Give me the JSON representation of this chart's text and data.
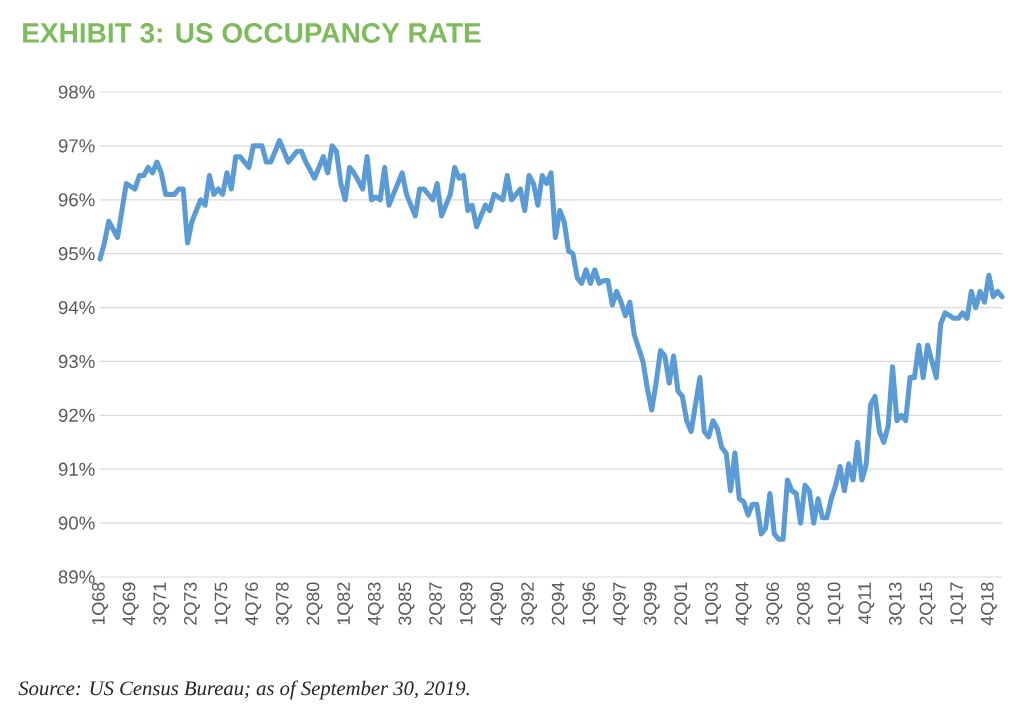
{
  "chart_data": {
    "type": "line",
    "title": "EXHIBIT 3: US OCCUPANCY RATE",
    "annotations": [
      "Source: US Census Bureau; as of September 30, 2019."
    ],
    "ylim": [
      89,
      98
    ],
    "grid": "y",
    "yticks": [
      {
        "value": 89,
        "label": "89%"
      },
      {
        "value": 90,
        "label": "90%"
      },
      {
        "value": 91,
        "label": "91%"
      },
      {
        "value": 92,
        "label": "92%"
      },
      {
        "value": 93,
        "label": "93%"
      },
      {
        "value": 94,
        "label": "94%"
      },
      {
        "value": 95,
        "label": "95%"
      },
      {
        "value": 96,
        "label": "96%"
      },
      {
        "value": 97,
        "label": "97%"
      },
      {
        "value": 98,
        "label": "98%"
      }
    ],
    "categories": [
      "1Q68",
      null,
      null,
      null,
      null,
      null,
      null,
      "4Q69",
      null,
      null,
      null,
      null,
      null,
      null,
      "3Q71",
      null,
      null,
      null,
      null,
      null,
      null,
      "2Q73",
      null,
      null,
      null,
      null,
      null,
      null,
      "1Q75",
      null,
      null,
      null,
      null,
      null,
      null,
      "4Q76",
      null,
      null,
      null,
      null,
      null,
      null,
      "3Q78",
      null,
      null,
      null,
      null,
      null,
      null,
      "2Q80",
      null,
      null,
      null,
      null,
      null,
      null,
      "1Q82",
      null,
      null,
      null,
      null,
      null,
      null,
      "4Q83",
      null,
      null,
      null,
      null,
      null,
      null,
      "3Q85",
      null,
      null,
      null,
      null,
      null,
      null,
      "2Q87",
      null,
      null,
      null,
      null,
      null,
      null,
      "1Q89",
      null,
      null,
      null,
      null,
      null,
      null,
      "4Q90",
      null,
      null,
      null,
      null,
      null,
      null,
      "3Q92",
      null,
      null,
      null,
      null,
      null,
      null,
      "2Q94",
      null,
      null,
      null,
      null,
      null,
      null,
      "1Q96",
      null,
      null,
      null,
      null,
      null,
      null,
      "4Q97",
      null,
      null,
      null,
      null,
      null,
      null,
      "3Q99",
      null,
      null,
      null,
      null,
      null,
      null,
      "2Q01",
      null,
      null,
      null,
      null,
      null,
      null,
      "1Q03",
      null,
      null,
      null,
      null,
      null,
      null,
      "4Q04",
      null,
      null,
      null,
      null,
      null,
      null,
      "3Q06",
      null,
      null,
      null,
      null,
      null,
      null,
      "2Q08",
      null,
      null,
      null,
      null,
      null,
      null,
      "1Q10",
      null,
      null,
      null,
      null,
      null,
      null,
      "4Q11",
      null,
      null,
      null,
      null,
      null,
      null,
      "3Q13",
      null,
      null,
      null,
      null,
      null,
      null,
      "2Q15",
      null,
      null,
      null,
      null,
      null,
      null,
      "1Q17",
      null,
      null,
      null,
      null,
      null,
      null,
      "4Q18",
      null,
      null,
      null
    ],
    "series": [
      {
        "color": "#5b9bd5",
        "values": [
          94.9,
          95.2,
          95.6,
          95.45,
          95.3,
          95.8,
          96.3,
          96.25,
          96.2,
          96.45,
          96.45,
          96.6,
          96.5,
          96.7,
          96.5,
          96.1,
          96.1,
          96.1,
          96.2,
          96.2,
          95.2,
          95.6,
          95.8,
          96.0,
          95.9,
          96.45,
          96.1,
          96.2,
          96.1,
          96.5,
          96.2,
          96.8,
          96.8,
          96.7,
          96.6,
          97.0,
          97.0,
          97.0,
          96.7,
          96.7,
          96.9,
          97.1,
          96.9,
          96.7,
          96.8,
          96.9,
          96.9,
          96.7,
          96.55,
          96.4,
          96.6,
          96.8,
          96.5,
          97.0,
          96.9,
          96.3,
          96.0,
          96.6,
          96.5,
          96.35,
          96.2,
          96.8,
          96.0,
          96.05,
          96.0,
          96.6,
          95.9,
          96.1,
          96.3,
          96.5,
          96.1,
          95.9,
          95.7,
          96.2,
          96.2,
          96.1,
          96.0,
          96.3,
          95.7,
          95.9,
          96.1,
          96.6,
          96.4,
          96.45,
          95.8,
          95.9,
          95.5,
          95.7,
          95.9,
          95.8,
          96.1,
          96.05,
          96.0,
          96.45,
          96.0,
          96.1,
          96.2,
          95.8,
          96.45,
          96.3,
          95.9,
          96.45,
          96.3,
          96.5,
          95.3,
          95.8,
          95.6,
          95.05,
          95.0,
          94.55,
          94.45,
          94.7,
          94.45,
          94.7,
          94.45,
          94.5,
          94.5,
          94.05,
          94.3,
          94.1,
          93.85,
          94.1,
          93.5,
          93.25,
          93.0,
          92.5,
          92.1,
          92.6,
          93.2,
          93.1,
          92.6,
          93.1,
          92.45,
          92.35,
          91.9,
          91.7,
          92.2,
          92.7,
          91.7,
          91.6,
          91.9,
          91.75,
          91.4,
          91.3,
          90.6,
          91.3,
          90.45,
          90.4,
          90.15,
          90.35,
          90.35,
          89.8,
          89.9,
          90.55,
          89.8,
          89.7,
          89.7,
          90.8,
          90.6,
          90.55,
          90.0,
          90.7,
          90.6,
          90.0,
          90.45,
          90.1,
          90.1,
          90.45,
          90.7,
          91.05,
          90.6,
          91.1,
          90.8,
          91.5,
          90.8,
          91.1,
          92.2,
          92.35,
          91.7,
          91.5,
          91.8,
          92.9,
          91.9,
          92.0,
          91.9,
          92.7,
          92.7,
          93.3,
          92.7,
          93.3,
          93.0,
          92.7,
          93.7,
          93.9,
          93.85,
          93.8,
          93.8,
          93.9,
          93.8,
          94.3,
          94.0,
          94.3,
          94.1,
          94.6,
          94.2,
          94.3,
          94.2
        ]
      }
    ]
  }
}
